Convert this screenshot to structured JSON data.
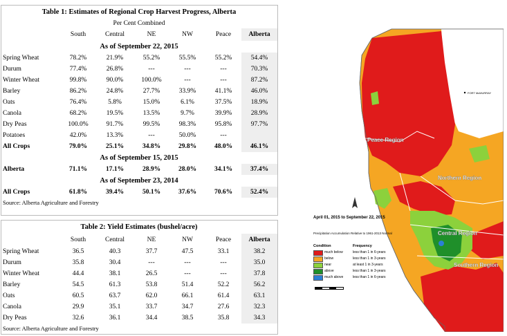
{
  "table1": {
    "title": "Table 1: Estimates of Regional Crop Harvest Progress, Alberta",
    "subtitle": "Per Cent Combined",
    "columns": [
      "",
      "South",
      "Central",
      "NE",
      "NW",
      "Peace",
      "Alberta"
    ],
    "section1_label": "As of September 22, 2015",
    "rows": [
      [
        "Spring Wheat",
        "78.2%",
        "21.9%",
        "55.2%",
        "55.5%",
        "55.2%",
        "54.4%"
      ],
      [
        "Durum",
        "77.4%",
        "26.8%",
        "---",
        "---",
        "---",
        "70.3%"
      ],
      [
        "Winter Wheat",
        "99.8%",
        "90.0%",
        "100.0%",
        "---",
        "---",
        "87.2%"
      ],
      [
        "Barley",
        "86.2%",
        "24.8%",
        "27.7%",
        "33.9%",
        "41.1%",
        "46.0%"
      ],
      [
        "Oats",
        "76.4%",
        "5.8%",
        "15.0%",
        "6.1%",
        "37.5%",
        "18.9%"
      ],
      [
        "Canola",
        "68.2%",
        "19.5%",
        "13.5%",
        "9.7%",
        "39.9%",
        "28.9%"
      ],
      [
        "Dry Peas",
        "100.0%",
        "91.7%",
        "99.5%",
        "98.3%",
        "95.8%",
        "97.7%"
      ],
      [
        "Potatoes",
        "42.0%",
        "13.3%",
        "---",
        "50.0%",
        "---",
        ""
      ],
      [
        "All Crops",
        "79.0%",
        "25.1%",
        "34.8%",
        "29.8%",
        "48.0%",
        "46.1%"
      ]
    ],
    "section2_label": "As of September 15, 2015",
    "row_sep15": [
      "Alberta",
      "71.1%",
      "17.1%",
      "28.9%",
      "28.0%",
      "34.1%",
      "37.4%"
    ],
    "section3_label": "As of September 23, 2014",
    "row_2014": [
      "All Crops",
      "61.8%",
      "39.4%",
      "50.1%",
      "37.6%",
      "70.6%",
      "52.4%"
    ],
    "source": "Source: Alberta Agriculture and Forestry"
  },
  "table2": {
    "title": "Table 2: Yield Estimates (bushel/acre)",
    "columns": [
      "",
      "South",
      "Central",
      "NE",
      "NW",
      "Peace",
      "Alberta"
    ],
    "rows": [
      [
        "Spring Wheat",
        "36.5",
        "40.3",
        "37.7",
        "47.5",
        "33.1",
        "38.2"
      ],
      [
        "Durum",
        "35.8",
        "30.4",
        "---",
        "---",
        "---",
        "35.0"
      ],
      [
        "Winter Wheat",
        "44.4",
        "38.1",
        "26.5",
        "---",
        "---",
        "37.8"
      ],
      [
        "Barley",
        "54.5",
        "61.3",
        "53.8",
        "51.4",
        "52.2",
        "56.2"
      ],
      [
        "Oats",
        "60.5",
        "63.7",
        "62.0",
        "66.1",
        "61.4",
        "63.1"
      ],
      [
        "Canola",
        "29.9",
        "35.1",
        "33.7",
        "34.7",
        "27.6",
        "32.3"
      ],
      [
        "Dry Peas",
        "32.6",
        "36.1",
        "34.4",
        "38.5",
        "35.8",
        "34.3"
      ]
    ],
    "source": "Source: Alberta Agriculture and Forestry"
  },
  "map": {
    "period": "April 01, 2015 to September 22, 2015",
    "subtitle": "Precipitation Accumulation Relative to 1961-2013 Normal",
    "condition_header": "Condition",
    "frequency_header": "Frequency",
    "legend": [
      {
        "condition": "much below",
        "frequency": "less than 1 in 6-years",
        "color": "#e01b1b"
      },
      {
        "condition": "below",
        "frequency": "less than 1 in 3-years",
        "color": "#f5a623"
      },
      {
        "condition": "near",
        "frequency": "at least 1 in 3-years",
        "color": "#8cd13c"
      },
      {
        "condition": "above",
        "frequency": "less than 1 in 3-years",
        "color": "#1f8f2a"
      },
      {
        "condition": "much above",
        "frequency": "less than 1 in 6-years",
        "color": "#2b7fd4"
      }
    ],
    "regions": {
      "peace": "Peace Region",
      "northern": "Northern Region",
      "central": "Central Region",
      "southern": "Southern Region"
    },
    "city_label": "FORT McMURRAY"
  }
}
